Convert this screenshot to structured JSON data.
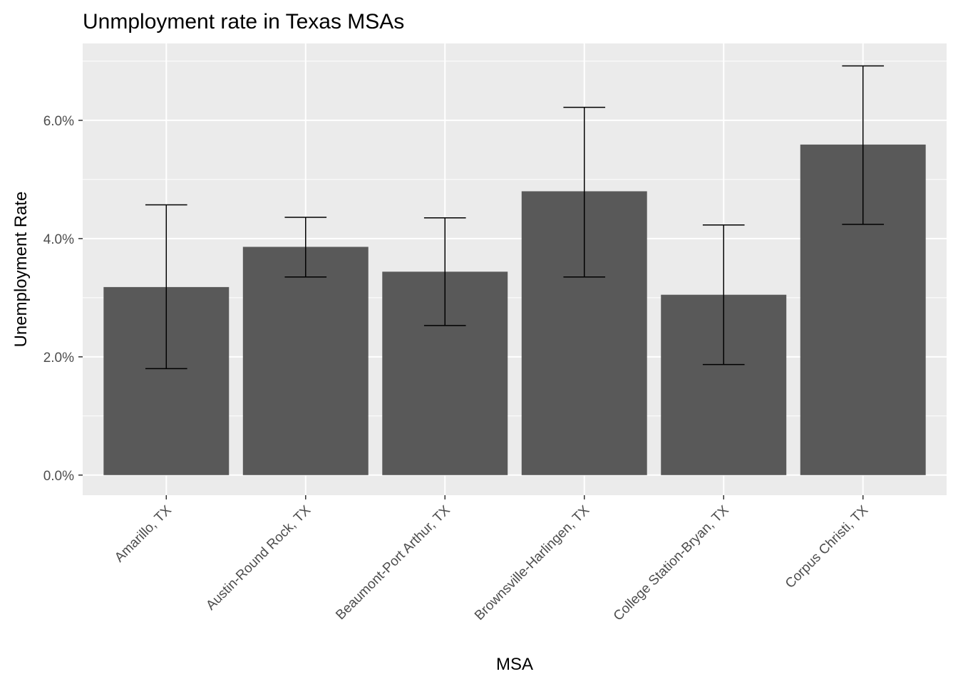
{
  "chart_data": {
    "type": "bar",
    "title": "Unmployment rate in Texas MSAs",
    "xlabel": "MSA",
    "ylabel": "Unemployment Rate",
    "categories": [
      "Amarillo, TX",
      "Austin-Round Rock, TX",
      "Beaumont-Port Arthur, TX",
      "Brownsville-Harlingen, TX",
      "College Station-Bryan, TX",
      "Corpus Christi, TX"
    ],
    "values": [
      3.18,
      3.86,
      3.44,
      4.8,
      3.05,
      5.59
    ],
    "error_low": [
      1.8,
      3.35,
      2.53,
      3.35,
      1.87,
      4.24
    ],
    "error_high": [
      4.57,
      4.36,
      4.35,
      6.22,
      4.23,
      6.92
    ],
    "value_unit": "%",
    "ylim": [
      -0.34,
      7.3
    ],
    "yticks": [
      0,
      2,
      4,
      6
    ],
    "ytick_labels": [
      "0.0%",
      "2.0%",
      "4.0%",
      "6.0%"
    ],
    "grid": true,
    "colors": {
      "bar": "#595959",
      "panel": "#ebebeb",
      "grid": "#ffffff",
      "error_bar": "#000000",
      "tick_label": "#4d4d4d"
    }
  }
}
